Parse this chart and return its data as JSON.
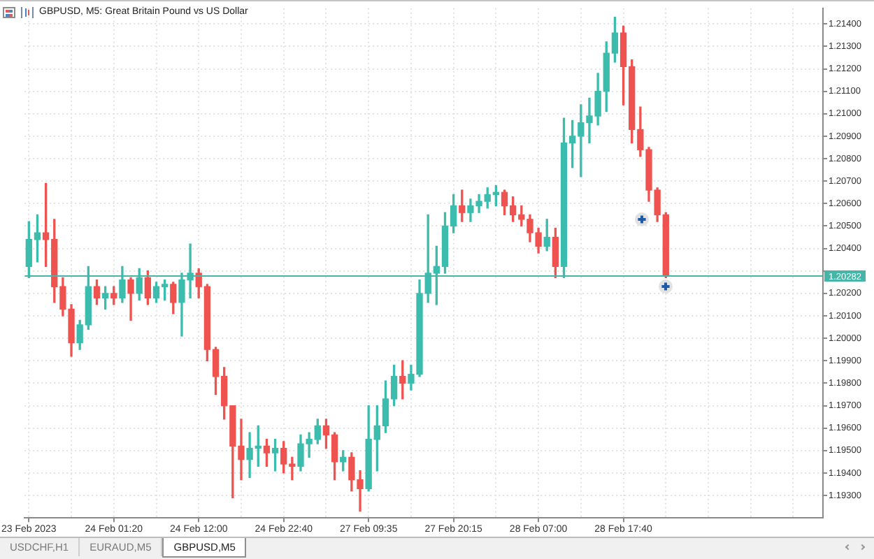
{
  "chart_data": {
    "type": "candlestick",
    "title": "GBPUSD, M5: Great Britain Pound vs US Dollar",
    "categories": [
      "23 Feb 2023",
      null,
      null,
      null,
      null,
      null,
      null,
      null,
      null,
      null,
      "24 Feb 01:20",
      null,
      null,
      null,
      null,
      null,
      null,
      null,
      null,
      null,
      "24 Feb 12:00",
      null,
      null,
      null,
      null,
      null,
      null,
      null,
      null,
      null,
      "24 Feb 22:40",
      null,
      null,
      null,
      null,
      null,
      null,
      null,
      null,
      null,
      "27 Feb 09:35",
      null,
      null,
      null,
      null,
      null,
      null,
      null,
      null,
      null,
      "27 Feb 20:15",
      null,
      null,
      null,
      null,
      null,
      null,
      null,
      null,
      null,
      "28 Feb 07:00",
      null,
      null,
      null,
      null,
      null,
      null,
      null,
      null,
      null,
      "28 Feb 17:40",
      null,
      null,
      null,
      null,
      null,
      null,
      null,
      null,
      null,
      null,
      null,
      null,
      null,
      null,
      null,
      null,
      null,
      null,
      null,
      null,
      null,
      null,
      null
    ],
    "ohlc": [
      [
        1.2032,
        1.2052,
        1.2027,
        1.2044
      ],
      [
        1.2044,
        1.2055,
        1.2034,
        1.2047
      ],
      [
        1.2047,
        1.2069,
        1.2032,
        1.2044
      ],
      [
        1.2044,
        1.2053,
        1.2016,
        1.2023
      ],
      [
        1.2023,
        1.2027,
        1.201,
        1.2013
      ],
      [
        1.2013,
        1.2015,
        1.1992,
        1.1998
      ],
      [
        1.1998,
        1.2008,
        1.1995,
        1.2006
      ],
      [
        1.2006,
        1.2032,
        1.2004,
        1.2023
      ],
      [
        1.2023,
        1.2026,
        1.2015,
        1.2018
      ],
      [
        1.2018,
        1.2023,
        1.2013,
        1.202
      ],
      [
        1.202,
        1.2023,
        1.2015,
        1.2018
      ],
      [
        1.2018,
        1.2032,
        1.2016,
        1.2026
      ],
      [
        1.2026,
        1.2027,
        1.2008,
        1.202
      ],
      [
        1.202,
        1.2031,
        1.2017,
        1.2027
      ],
      [
        1.2027,
        1.203,
        1.2015,
        1.2018
      ],
      [
        1.2018,
        1.2025,
        1.2016,
        1.2023
      ],
      [
        1.2023,
        1.2026,
        1.2017,
        1.2024
      ],
      [
        1.2024,
        1.2025,
        1.2011,
        1.2016
      ],
      [
        1.2016,
        1.2029,
        1.2001,
        1.2026
      ],
      [
        1.2026,
        1.2042,
        1.2018,
        1.2029
      ],
      [
        1.2029,
        1.2031,
        1.2018,
        1.2023
      ],
      [
        1.2023,
        1.2024,
        1.199,
        1.1995
      ],
      [
        1.1995,
        1.1996,
        1.1975,
        1.1983
      ],
      [
        1.1983,
        1.1987,
        1.1964,
        1.197
      ],
      [
        1.197,
        1.197,
        1.1929,
        1.1952
      ],
      [
        1.1952,
        1.1964,
        1.1937,
        1.1946
      ],
      [
        1.1946,
        1.1958,
        1.1938,
        1.1951
      ],
      [
        1.1951,
        1.1961,
        1.1943,
        1.1952
      ],
      [
        1.1952,
        1.1955,
        1.1943,
        1.1949
      ],
      [
        1.1949,
        1.1955,
        1.1941,
        1.1951
      ],
      [
        1.1951,
        1.1954,
        1.194,
        1.1944
      ],
      [
        1.1944,
        1.1947,
        1.1937,
        1.1943
      ],
      [
        1.1943,
        1.1957,
        1.1941,
        1.1953
      ],
      [
        1.1953,
        1.1958,
        1.1947,
        1.1955
      ],
      [
        1.1955,
        1.1964,
        1.1953,
        1.1961
      ],
      [
        1.1961,
        1.1964,
        1.1951,
        1.1957
      ],
      [
        1.1957,
        1.1958,
        1.1937,
        1.1945
      ],
      [
        1.1945,
        1.195,
        1.1941,
        1.1947
      ],
      [
        1.1947,
        1.1949,
        1.1932,
        1.1937
      ],
      [
        1.1937,
        1.1941,
        1.1923,
        1.1933
      ],
      [
        1.1933,
        1.197,
        1.1932,
        1.1955
      ],
      [
        1.1955,
        1.197,
        1.1941,
        1.1961
      ],
      [
        1.1961,
        1.1981,
        1.1958,
        1.1973
      ],
      [
        1.1973,
        1.1988,
        1.197,
        1.1983
      ],
      [
        1.1983,
        1.199,
        1.1973,
        1.198
      ],
      [
        1.198,
        1.1988,
        1.1977,
        1.1984
      ],
      [
        1.1984,
        1.2026,
        1.1983,
        1.202
      ],
      [
        1.202,
        1.2055,
        1.2016,
        1.2029
      ],
      [
        1.2029,
        1.2041,
        1.2015,
        1.2032
      ],
      [
        1.2032,
        1.2056,
        1.2029,
        1.205
      ],
      [
        1.205,
        1.2064,
        1.2047,
        1.2059
      ],
      [
        1.2059,
        1.2066,
        1.2052,
        1.2056
      ],
      [
        1.2056,
        1.2062,
        1.2052,
        1.2059
      ],
      [
        1.2059,
        1.2064,
        1.2056,
        1.2061
      ],
      [
        1.2061,
        1.2067,
        1.2058,
        1.2064
      ],
      [
        1.2064,
        1.2068,
        1.2059,
        1.2065
      ],
      [
        1.2065,
        1.2066,
        1.2055,
        1.2059
      ],
      [
        1.2059,
        1.2063,
        1.2052,
        1.2055
      ],
      [
        1.2055,
        1.2059,
        1.205,
        1.2053
      ],
      [
        1.2053,
        1.2055,
        1.2043,
        1.2047
      ],
      [
        1.2047,
        1.2049,
        1.2038,
        1.2041
      ],
      [
        1.2041,
        1.2053,
        1.2039,
        1.2045
      ],
      [
        1.2045,
        1.2049,
        1.2027,
        1.2032
      ],
      [
        1.2032,
        1.2098,
        1.2027,
        1.2087
      ],
      [
        1.2087,
        1.2097,
        1.2076,
        1.209
      ],
      [
        1.209,
        1.2104,
        1.2072,
        1.2096
      ],
      [
        1.2096,
        1.2107,
        1.2087,
        1.2099
      ],
      [
        1.2099,
        1.2118,
        1.2095,
        1.211
      ],
      [
        1.211,
        1.2132,
        1.2101,
        1.2127
      ],
      [
        1.2127,
        1.2143,
        1.2123,
        1.2136
      ],
      [
        1.2136,
        1.2139,
        1.2104,
        1.2121
      ],
      [
        1.2121,
        1.2124,
        1.2087,
        1.2093
      ],
      [
        1.2093,
        1.2103,
        1.2081,
        1.2084
      ],
      [
        1.2084,
        1.2085,
        1.2061,
        1.2066
      ],
      [
        1.2066,
        1.2067,
        1.2052,
        1.2055
      ],
      [
        1.2055,
        1.2056,
        1.2027,
        1.2028
      ],
      null,
      null,
      null,
      null,
      null,
      null,
      null,
      null,
      null,
      null,
      null,
      null,
      null,
      null,
      null,
      null,
      null,
      null
    ],
    "colors": [
      "#3cbcac",
      "#3cbcac",
      "#ef5350",
      "#ef5350",
      "#ef5350",
      "#ef5350",
      "#3cbcac",
      "#3cbcac",
      "#ef5350",
      "#3cbcac",
      "#ef5350",
      "#3cbcac",
      "#ef5350",
      "#3cbcac",
      "#ef5350",
      "#3cbcac",
      "#3cbcac",
      "#ef5350",
      "#3cbcac",
      "#3cbcac",
      "#ef5350",
      "#ef5350",
      "#ef5350",
      "#ef5350",
      "#ef5350",
      "#ef5350",
      "#3cbcac",
      "#3cbcac",
      "#ef5350",
      "#3cbcac",
      "#ef5350",
      "#ef5350",
      "#3cbcac",
      "#3cbcac",
      "#3cbcac",
      "#ef5350",
      "#ef5350",
      "#3cbcac",
      "#ef5350",
      "#ef5350",
      "#3cbcac",
      "#3cbcac",
      "#3cbcac",
      "#3cbcac",
      "#ef5350",
      "#3cbcac",
      "#3cbcac",
      "#3cbcac",
      "#3cbcac",
      "#3cbcac",
      "#3cbcac",
      "#ef5350",
      "#3cbcac",
      "#3cbcac",
      "#3cbcac",
      "#3cbcac",
      "#ef5350",
      "#ef5350",
      "#ef5350",
      "#ef5350",
      "#ef5350",
      "#3cbcac",
      "#ef5350",
      "#3cbcac",
      "#3cbcac",
      "#3cbcac",
      "#3cbcac",
      "#3cbcac",
      "#3cbcac",
      "#3cbcac",
      "#ef5350",
      "#ef5350",
      "#ef5350",
      "#ef5350",
      "#ef5350",
      "#ef5350",
      null,
      null,
      null,
      null,
      null,
      null,
      null,
      null,
      null,
      null,
      null,
      null,
      null,
      null,
      null,
      null,
      null,
      null
    ],
    "ylim": [
      1.192,
      1.2147
    ],
    "yticks": [
      {
        "value": 1.193,
        "label": "1.19300"
      },
      {
        "value": 1.194,
        "label": "1.19400"
      },
      {
        "value": 1.195,
        "label": "1.19500"
      },
      {
        "value": 1.196,
        "label": "1.19600"
      },
      {
        "value": 1.197,
        "label": "1.19700"
      },
      {
        "value": 1.198,
        "label": "1.19800"
      },
      {
        "value": 1.199,
        "label": "1.19900"
      },
      {
        "value": 1.2,
        "label": "1.20000"
      },
      {
        "value": 1.201,
        "label": "1.20100"
      },
      {
        "value": 1.202,
        "label": "1.20200"
      },
      {
        "value": 1.203,
        "label": null
      },
      {
        "value": 1.204,
        "label": "1.20400"
      },
      {
        "value": 1.205,
        "label": "1.20500"
      },
      {
        "value": 1.206,
        "label": "1.20600"
      },
      {
        "value": 1.207,
        "label": "1.20700"
      },
      {
        "value": 1.208,
        "label": "1.20800"
      },
      {
        "value": 1.209,
        "label": "1.20900"
      },
      {
        "value": 1.21,
        "label": "1.21000"
      },
      {
        "value": 1.211,
        "label": "1.21100"
      },
      {
        "value": 1.212,
        "label": "1.21200"
      },
      {
        "value": 1.213,
        "label": "1.21300"
      },
      {
        "value": 1.214,
        "label": "1.21400"
      }
    ],
    "grid": true,
    "ref_lines": [
      {
        "axis": "y",
        "value": 1.20282,
        "label": "1.20282",
        "color": "#45b5a7"
      }
    ],
    "annotations": [
      "USDCHF,H1",
      "EURAUD,M5",
      "GBPUSD,M5"
    ]
  }
}
